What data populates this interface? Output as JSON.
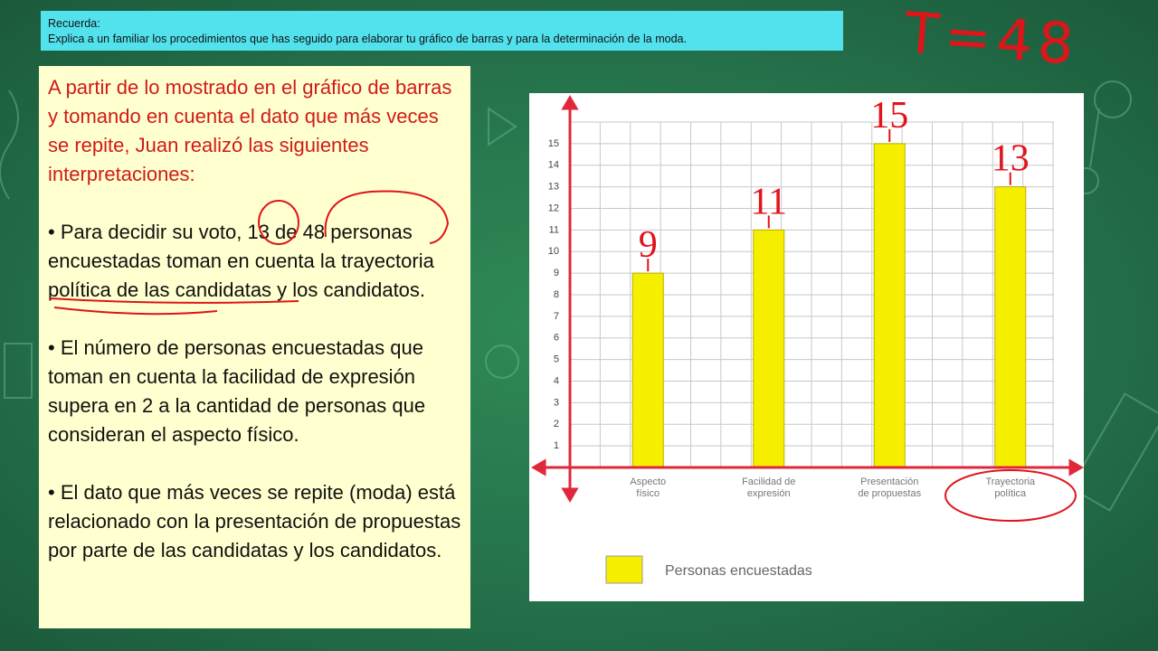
{
  "notice": {
    "title": "Recuerda:",
    "text": "Explica a un familiar los procedimientos que has seguido para elaborar tu gráfico de barras y para la determinación de la moda."
  },
  "handwriting": "T=48",
  "panel": {
    "intro": "A partir de lo mostrado en el gráfico de barras y tomando en cuenta el dato que más veces se repite, Juan realizó las siguientes interpretaciones:",
    "bullets": [
      "• Para decidir su voto, 13 de 48 personas encuestadas toman en cuenta la trayectoria política de las candidatas y los candidatos.",
      "• El número de personas encuestadas que toman en cuenta la facilidad de expresión supera en 2 a la cantidad de personas que consideran el aspecto físico.",
      "• El dato que más veces se repite (moda) está relacionado con la presentación de propuestas por parte de las candidatas y los candidatos."
    ]
  },
  "chart_data": {
    "type": "bar",
    "categories": [
      "Aspecto\nfísico",
      "Facilidad de\nexpresión",
      "Presentación\nde propuestas",
      "Trayectoria\npolítica"
    ],
    "series": [
      {
        "name": "Personas encuestadas",
        "color": "#f7ef00",
        "values": [
          9,
          11,
          15,
          13
        ]
      }
    ],
    "ylim": [
      0,
      16
    ],
    "yticks": [
      1,
      2,
      3,
      4,
      5,
      6,
      7,
      8,
      9,
      10,
      11,
      12,
      13,
      14,
      15
    ],
    "grid": true
  }
}
